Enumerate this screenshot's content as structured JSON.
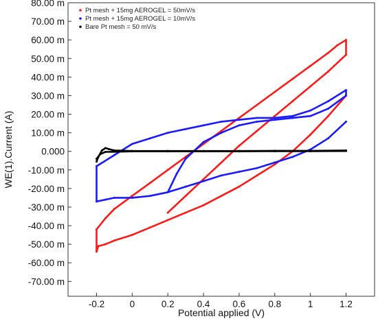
{
  "chart_data": {
    "type": "line",
    "title": "",
    "xlabel": "Potential applied (V)",
    "ylabel": "WE(1).Current (A)",
    "xlim": [
      -0.36,
      1.36
    ],
    "ylim": [
      -78,
      80
    ],
    "x_ticks": [
      -0.2,
      0,
      0.2,
      0.4,
      0.6,
      0.8,
      1,
      1.2
    ],
    "x_tick_labels": [
      "-0.2",
      "0",
      "0.2",
      "0.4",
      "0.6",
      "0.8",
      "1",
      "1.2"
    ],
    "y_ticks": [
      80,
      70,
      60,
      50,
      40,
      30,
      20,
      10,
      0,
      -10,
      -20,
      -30,
      -40,
      -50,
      -60,
      -70
    ],
    "y_tick_labels": [
      "80.00 m",
      "70.00 m",
      "60.00 m",
      "50.00 m",
      "40.00 m",
      "30.00 m",
      "20.00 m",
      "10.00 m",
      "0.000",
      "-10.00 m",
      "-20.00 m",
      "-30.00 m",
      "-40.00 m",
      "-50.00 m",
      "-60.00 m",
      "-70.00 m"
    ],
    "grid": false,
    "legend_position": "top-left",
    "series": [
      {
        "name": "Pt mesh + 15mg AEROGEL = 50mV/s",
        "color": "#ff1a1a",
        "loops": [
          {
            "x": [
              0.2,
              0.3,
              0.4,
              0.5,
              0.6,
              0.7,
              0.8,
              0.9,
              1.0,
              1.1,
              1.2,
              1.2,
              1.15,
              1.1,
              1.0,
              0.9,
              0.8,
              0.7,
              0.6,
              0.5,
              0.4,
              0.3,
              0.2,
              0.1,
              0.0,
              -0.1,
              -0.15,
              -0.2,
              -0.2,
              -0.19,
              -0.15,
              -0.1,
              0.0,
              0.1,
              0.2,
              0.3,
              0.4,
              0.5,
              0.6,
              0.7,
              0.8,
              0.9,
              1.0,
              1.1,
              1.2
            ],
            "y": [
              -33,
              -24,
              -15,
              -6,
              3,
              11,
              19,
              27,
              35,
              43,
              52,
              60,
              57,
              53,
              46,
              39,
              32,
              25,
              18,
              11,
              4,
              -3,
              -10,
              -17,
              -24,
              -31,
              -36,
              -42,
              -54,
              -51,
              -50,
              -48,
              -45,
              -41,
              -37,
              -33,
              -29,
              -24,
              -19,
              -13,
              -7,
              0,
              9,
              19,
              30
            ]
          }
        ]
      },
      {
        "name": "Pt mesh + 15mg AEROGEL = 10mV/s",
        "color": "#1a1aff",
        "loops": [
          {
            "x": [
              0.2,
              0.25,
              0.3,
              0.4,
              0.5,
              0.6,
              0.7,
              0.8,
              0.9,
              1.0,
              1.1,
              1.2,
              1.2,
              1.1,
              1.0,
              0.9,
              0.8,
              0.7,
              0.6,
              0.5,
              0.4,
              0.3,
              0.2,
              0.1,
              0.0,
              -0.1,
              -0.2,
              -0.2,
              -0.15,
              -0.1,
              0.0,
              0.1,
              0.2,
              0.3,
              0.4,
              0.5,
              0.6,
              0.7,
              0.8,
              0.9,
              1.0,
              1.1,
              1.2
            ],
            "y": [
              -22,
              -12,
              -4,
              5,
              10,
              14,
              16,
              17,
              18,
              19,
              23,
              30,
              33,
              27,
              22,
              19,
              18,
              18,
              17,
              16,
              14,
              12,
              10,
              7,
              4,
              -2,
              -8,
              -27,
              -26,
              -25,
              -25,
              -24,
              -22,
              -19,
              -16,
              -13,
              -11,
              -9,
              -6,
              -3,
              1,
              7,
              16
            ]
          }
        ]
      },
      {
        "name": "Bare Pt mesh = 50 mV/s",
        "color": "#000000",
        "loops": [
          {
            "x": [
              -0.2,
              -0.19,
              -0.17,
              -0.15,
              -0.13,
              -0.1,
              0.0,
              0.2,
              0.4,
              0.6,
              0.8,
              1.0,
              1.2,
              1.2,
              1.0,
              0.8,
              0.6,
              0.4,
              0.2,
              0.0,
              -0.1,
              -0.15,
              -0.18,
              -0.2
            ],
            "y": [
              -5.5,
              -3,
              0.5,
              1.8,
              1.2,
              0.5,
              0.2,
              0.2,
              0.2,
              0.2,
              0.3,
              0.3,
              0.5,
              0.2,
              0.1,
              0.1,
              0.0,
              0.0,
              0.0,
              0.0,
              -0.2,
              -0.3,
              -1.5,
              -4
            ]
          }
        ]
      }
    ]
  }
}
